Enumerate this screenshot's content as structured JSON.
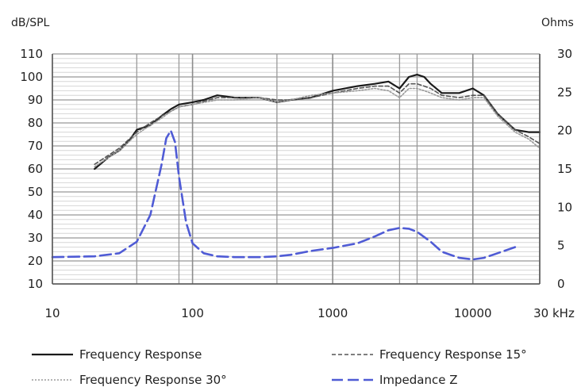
{
  "chart_data": {
    "type": "line",
    "x_scale": "log",
    "x_unit": "Hz",
    "xlim": [
      10,
      30000
    ],
    "x_tick_labels": [
      "10",
      "100",
      "1000",
      "10000",
      "30 kHz"
    ],
    "x_tick_values": [
      10,
      100,
      1000,
      10000,
      30000
    ],
    "x_gridlines": [
      40,
      80,
      400,
      3000,
      4000,
      30000
    ],
    "y_left_unit": "dB/SPL",
    "y_left_lim": [
      10,
      110
    ],
    "y_left_ticks": [
      10,
      20,
      30,
      40,
      50,
      60,
      70,
      80,
      90,
      100,
      110
    ],
    "y_left_tick_labels": [
      "10",
      "20",
      "30",
      "40",
      "50",
      "60",
      "70",
      "80",
      "90",
      "100",
      "110"
    ],
    "y_right_unit": "Ohms",
    "y_right_lim": [
      0,
      30
    ],
    "y_right_ticks": [
      0,
      5,
      10,
      15,
      20,
      25,
      30
    ],
    "y_right_tick_labels": [
      "0",
      "5",
      "10",
      "15",
      "20",
      "25",
      "30"
    ],
    "grid": true,
    "legend_position": "bottom",
    "series": [
      {
        "name": "Frequency Response",
        "axis": "left",
        "color": "#1a1a1a",
        "style": "solid",
        "x": [
          20,
          25,
          30,
          35,
          40,
          50,
          60,
          70,
          80,
          100,
          120,
          150,
          200,
          300,
          400,
          500,
          700,
          1000,
          1500,
          2000,
          2500,
          3000,
          3500,
          4000,
          4500,
          5000,
          6000,
          8000,
          10000,
          12000,
          15000,
          20000,
          25000,
          30000
        ],
        "y": [
          60,
          65,
          68,
          72,
          77,
          79,
          83,
          86,
          88,
          89,
          90,
          92,
          91,
          91,
          89,
          90,
          91,
          94,
          96,
          97,
          98,
          95,
          100,
          101,
          100,
          97,
          93,
          93,
          95,
          92,
          84,
          77,
          76,
          76
        ]
      },
      {
        "name": "Frequency Response 15°",
        "axis": "left",
        "color": "#555555",
        "style": "dashed",
        "x": [
          20,
          30,
          40,
          50,
          60,
          70,
          80,
          100,
          150,
          200,
          300,
          400,
          500,
          700,
          1000,
          1500,
          2000,
          2500,
          3000,
          3500,
          4000,
          4500,
          5000,
          6000,
          8000,
          10000,
          12000,
          15000,
          20000,
          25000,
          30000
        ],
        "y": [
          62,
          69,
          76,
          80,
          83,
          85,
          87,
          88,
          91,
          91,
          91,
          90,
          90,
          91,
          93,
          95,
          96,
          96,
          93,
          97,
          97,
          96,
          95,
          92,
          91,
          92,
          92,
          84,
          77,
          74,
          71
        ]
      },
      {
        "name": "Frequency Response 30°",
        "axis": "left",
        "color": "#9a9a9a",
        "style": "dotted",
        "x": [
          20,
          30,
          40,
          50,
          60,
          70,
          80,
          100,
          150,
          200,
          300,
          400,
          500,
          700,
          1000,
          1500,
          2000,
          2500,
          3000,
          3500,
          4000,
          4500,
          5000,
          6000,
          8000,
          10000,
          12000,
          15000,
          20000,
          25000,
          30000
        ],
        "y": [
          61,
          68,
          75,
          79,
          82,
          85,
          87,
          88,
          90,
          90,
          91,
          89,
          90,
          92,
          93,
          94,
          95,
          94,
          91,
          95,
          95,
          94,
          93,
          91,
          90,
          91,
          91,
          83,
          76,
          73,
          69
        ]
      },
      {
        "name": "Impedance Z",
        "axis": "right",
        "color": "#4f5bd5",
        "style": "longdash",
        "x": [
          10,
          20,
          30,
          40,
          50,
          60,
          65,
          70,
          75,
          80,
          90,
          100,
          120,
          150,
          200,
          300,
          400,
          500,
          700,
          1000,
          1500,
          2000,
          2500,
          3000,
          3500,
          4000,
          5000,
          6000,
          8000,
          10000,
          12000,
          15000,
          20000
        ],
        "y": [
          3.5,
          3.6,
          4.0,
          5.5,
          9.0,
          15.5,
          19.0,
          20.0,
          18.5,
          14.0,
          8.0,
          5.3,
          4.0,
          3.6,
          3.5,
          3.5,
          3.6,
          3.8,
          4.3,
          4.7,
          5.3,
          6.2,
          7.0,
          7.3,
          7.2,
          6.8,
          5.5,
          4.2,
          3.4,
          3.2,
          3.4,
          4.0,
          4.8
        ]
      }
    ],
    "legend": [
      {
        "label": "Frequency Response",
        "series": 0
      },
      {
        "label": "Frequency Response 15°",
        "series": 1
      },
      {
        "label": "Frequency Response 30°",
        "series": 2
      },
      {
        "label": "Impedance Z",
        "series": 3
      }
    ]
  }
}
